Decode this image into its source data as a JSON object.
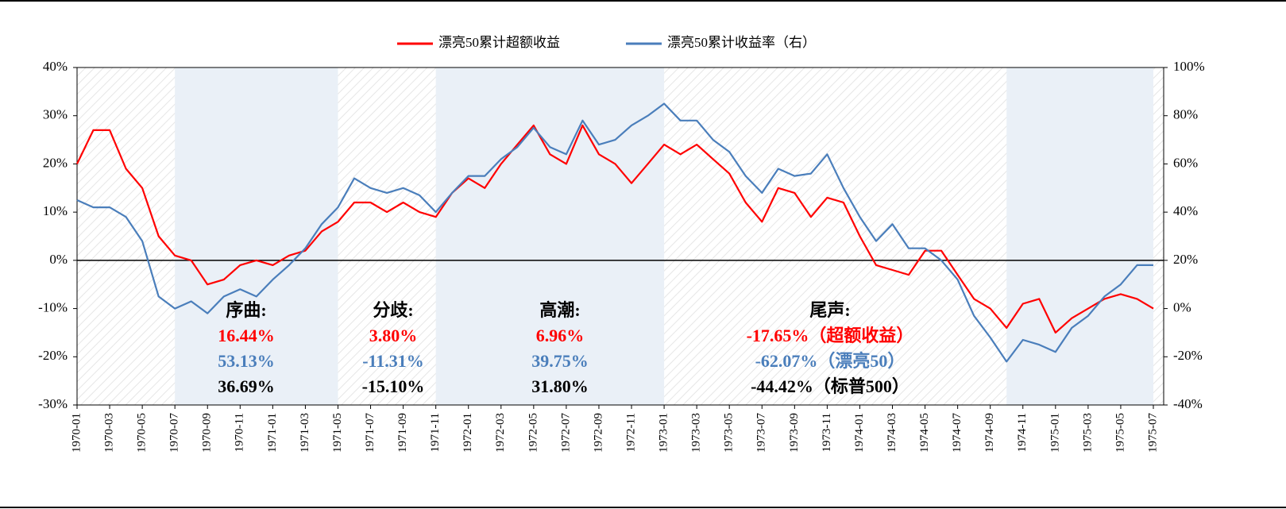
{
  "chart_data": {
    "type": "line",
    "legend": "top",
    "x": [
      "1970-01",
      "1970-02",
      "1970-03",
      "1970-04",
      "1970-05",
      "1970-06",
      "1970-07",
      "1970-08",
      "1970-09",
      "1970-10",
      "1970-11",
      "1970-12",
      "1971-01",
      "1971-02",
      "1971-03",
      "1971-04",
      "1971-05",
      "1971-06",
      "1971-07",
      "1971-08",
      "1971-09",
      "1971-10",
      "1971-11",
      "1971-12",
      "1972-01",
      "1972-02",
      "1972-03",
      "1972-04",
      "1972-05",
      "1972-06",
      "1972-07",
      "1972-08",
      "1972-09",
      "1972-10",
      "1972-11",
      "1972-12",
      "1973-01",
      "1973-02",
      "1973-03",
      "1973-04",
      "1973-05",
      "1973-06",
      "1973-07",
      "1973-08",
      "1973-09",
      "1973-10",
      "1973-11",
      "1973-12",
      "1974-01",
      "1974-02",
      "1974-03",
      "1974-04",
      "1974-05",
      "1974-06",
      "1974-07",
      "1974-08",
      "1974-09",
      "1974-10",
      "1974-11",
      "1974-12",
      "1975-01",
      "1975-02",
      "1975-03",
      "1975-04",
      "1975-05",
      "1975-06",
      "1975-07"
    ],
    "series": [
      {
        "name": "漂亮50累计超额收益",
        "color": "#ff0000",
        "values": [
          20,
          27,
          27,
          19,
          15,
          5,
          1,
          0,
          -5,
          -4,
          -1,
          0,
          -1,
          1,
          2,
          6,
          8,
          12,
          12,
          10,
          12,
          10,
          9,
          14,
          17,
          15,
          20,
          24,
          28,
          22,
          20,
          28,
          22,
          20,
          16,
          20,
          24,
          22,
          24,
          21,
          18,
          12,
          8,
          15,
          14,
          9,
          13,
          12,
          5,
          -1,
          -2,
          -3,
          2,
          2,
          -3,
          -8,
          -10,
          -14,
          -9,
          -8,
          -15,
          -12,
          -10,
          -8,
          -7,
          -8,
          -10
        ]
      },
      {
        "name": "漂亮50累计收益率（右）",
        "color": "#4a7ebb",
        "axis": "y2",
        "values": [
          45,
          42,
          42,
          38,
          28,
          5,
          0,
          3,
          -2,
          5,
          8,
          5,
          12,
          18,
          25,
          35,
          42,
          54,
          50,
          48,
          50,
          47,
          40,
          48,
          55,
          55,
          62,
          67,
          75,
          67,
          64,
          78,
          68,
          70,
          76,
          80,
          85,
          78,
          78,
          70,
          65,
          55,
          48,
          58,
          55,
          56,
          64,
          50,
          38,
          28,
          35,
          25,
          25,
          20,
          12,
          -3,
          -12,
          -22,
          -13,
          -15,
          -18,
          -8,
          -3,
          5,
          10,
          18,
          18
        ]
      }
    ],
    "ylim": [
      -30,
      40
    ],
    "yticks": [
      {
        "value": -30,
        "label": "-30%"
      },
      {
        "value": -20,
        "label": "-20%"
      },
      {
        "value": -10,
        "label": "-10%"
      },
      {
        "value": 0,
        "label": "0%"
      },
      {
        "value": 10,
        "label": "10%"
      },
      {
        "value": 20,
        "label": "20%"
      },
      {
        "value": 30,
        "label": "30%"
      },
      {
        "value": 40,
        "label": "40%"
      }
    ],
    "y2lim": [
      -40,
      100
    ],
    "y2ticks": [
      {
        "value": -40,
        "label": "-40%"
      },
      {
        "value": -20,
        "label": "-20%"
      },
      {
        "value": 0,
        "label": "0%"
      },
      {
        "value": 20,
        "label": "20%"
      },
      {
        "value": 40,
        "label": "40%"
      },
      {
        "value": 60,
        "label": "60%"
      },
      {
        "value": 80,
        "label": "80%"
      },
      {
        "value": 100,
        "label": "100%"
      }
    ],
    "xticks": [
      "1970-01",
      "1970-03",
      "1970-05",
      "1970-07",
      "1970-09",
      "1970-11",
      "1971-01",
      "1971-03",
      "1971-05",
      "1971-07",
      "1971-09",
      "1971-11",
      "1972-01",
      "1972-03",
      "1972-05",
      "1972-07",
      "1972-09",
      "1972-11",
      "1973-01",
      "1973-03",
      "1973-05",
      "1973-07",
      "1973-09",
      "1973-11",
      "1974-01",
      "1974-03",
      "1974-05",
      "1974-07",
      "1974-09",
      "1974-11",
      "1975-01",
      "1975-03",
      "1975-05",
      "1975-07"
    ],
    "shaded_ranges": [
      [
        "1970-07",
        "1971-05"
      ],
      [
        "1971-11",
        "1973-01"
      ],
      [
        "1974-10",
        "1975-07"
      ]
    ],
    "annotations": [
      {
        "lines": [
          {
            "text": "序曲:",
            "color": "#000000"
          },
          {
            "text": "16.44%",
            "color": "#ff0000"
          },
          {
            "text": "53.13%",
            "color": "#4a7ebb"
          },
          {
            "text": "36.69%",
            "color": "#000000"
          }
        ]
      },
      {
        "lines": [
          {
            "text": "分歧:",
            "color": "#000000"
          },
          {
            "text": "3.80%",
            "color": "#ff0000"
          },
          {
            "text": "-11.31%",
            "color": "#4a7ebb"
          },
          {
            "text": "-15.10%",
            "color": "#000000"
          }
        ]
      },
      {
        "lines": [
          {
            "text": "高潮:",
            "color": "#000000"
          },
          {
            "text": "6.96%",
            "color": "#ff0000"
          },
          {
            "text": "39.75%",
            "color": "#4a7ebb"
          },
          {
            "text": "31.80%",
            "color": "#000000"
          }
        ]
      },
      {
        "lines": [
          {
            "text": "尾声:",
            "color": "#000000"
          },
          {
            "text": "-17.65%（超额收益）",
            "color": "#ff0000"
          },
          {
            "text": "-62.07%（漂亮50）",
            "color": "#4a7ebb"
          },
          {
            "text": "-44.42%（标普500）",
            "color": "#000000"
          }
        ]
      }
    ]
  }
}
